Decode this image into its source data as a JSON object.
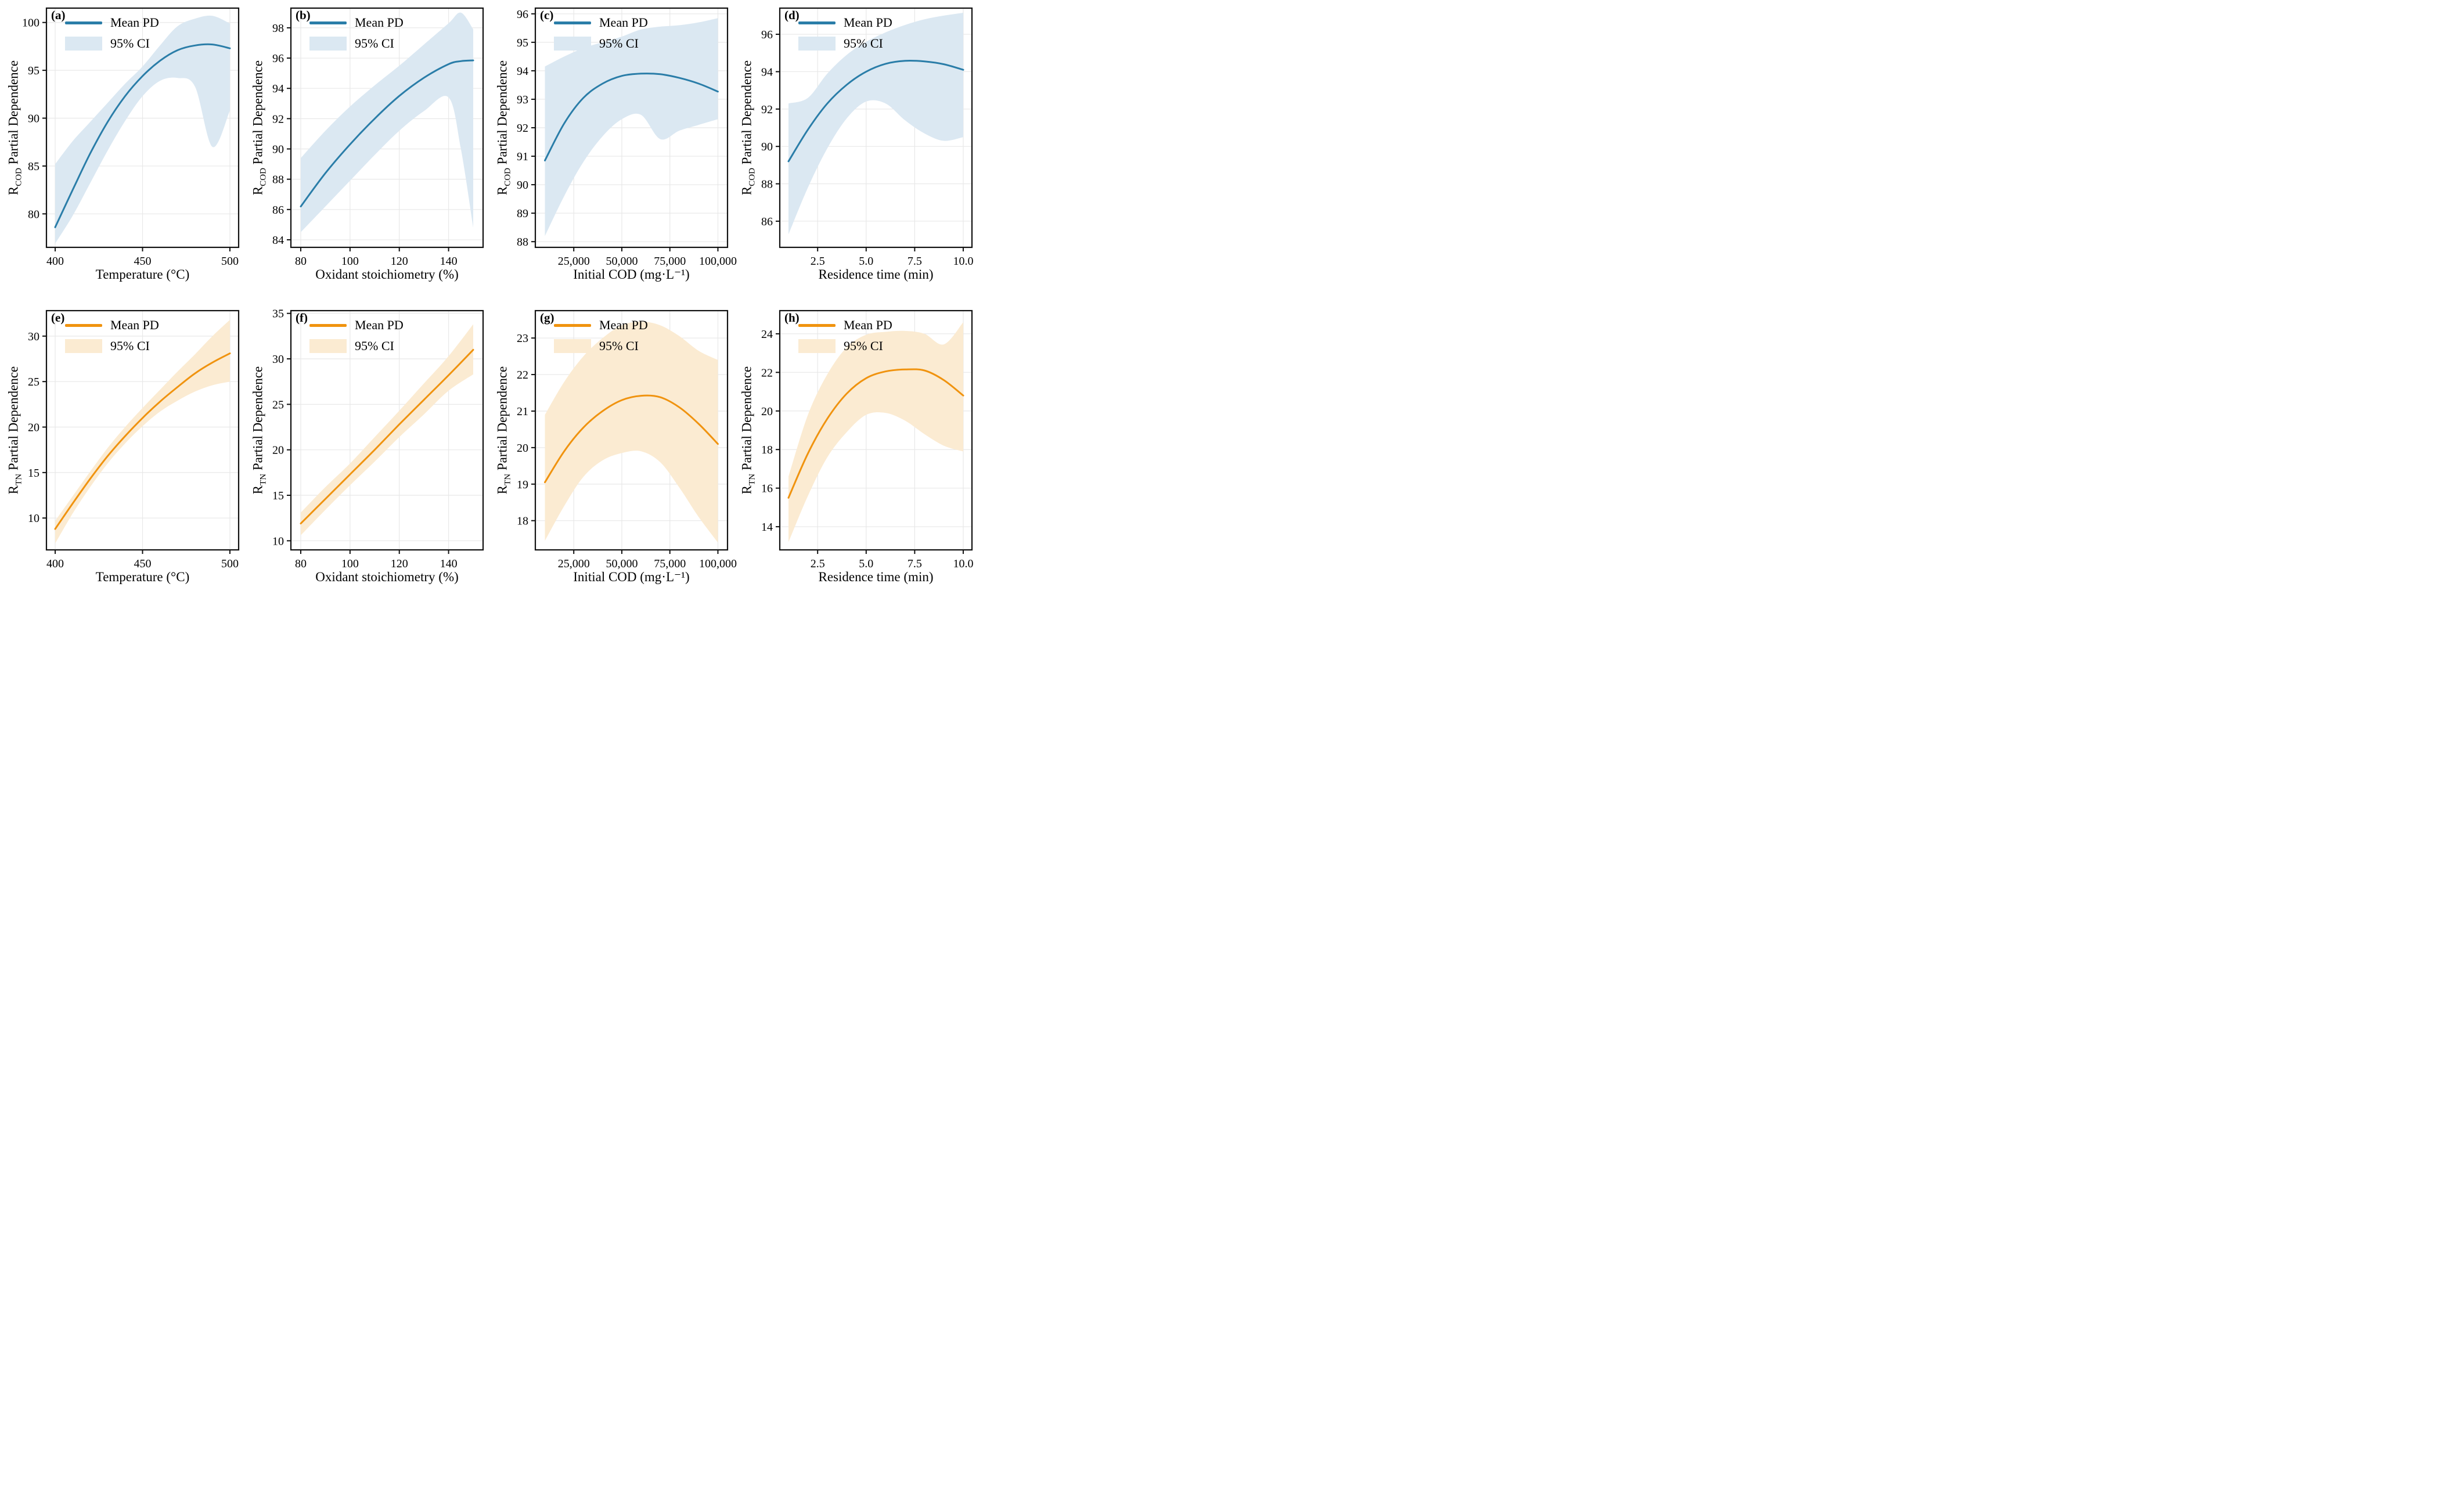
{
  "legend": {
    "mean_label": "Mean PD",
    "ci_label": "95% CI"
  },
  "colors": {
    "blue_line": "#2a7da8",
    "blue_fill": "#dbe8f2",
    "orange_line": "#f0930f",
    "orange_fill": "#fbebd2",
    "grid": "#e8e8e8",
    "spine": "#111111"
  },
  "chart_data": [
    {
      "type": "line",
      "panel_tag": "(a)",
      "series": "R_COD",
      "color_line": "#2a7da8",
      "color_fill": "#dbe8f2",
      "xlabel": "Temperature (°C)",
      "ylabel_prefix": "R",
      "ylabel_sub": "COD",
      "ylabel_rest": " Partial Dependence",
      "xlim": [
        395,
        505
      ],
      "ylim": [
        76.5,
        101.5
      ],
      "xticks": [
        {
          "v": 400,
          "label": "400"
        },
        {
          "v": 450,
          "label": "450"
        },
        {
          "v": 500,
          "label": "500"
        }
      ],
      "yticks": [
        {
          "v": 80,
          "label": "80"
        },
        {
          "v": 85,
          "label": "85"
        },
        {
          "v": 90,
          "label": "90"
        },
        {
          "v": 95,
          "label": "95"
        },
        {
          "v": 100,
          "label": "100"
        }
      ],
      "x": [
        400,
        410,
        420,
        430,
        440,
        450,
        460,
        470,
        480,
        490,
        500
      ],
      "mean": [
        78.6,
        82.5,
        86.3,
        89.6,
        92.3,
        94.4,
        96.0,
        97.1,
        97.6,
        97.7,
        97.3
      ],
      "ci_upper": [
        85.2,
        87.6,
        89.6,
        91.6,
        93.6,
        95.4,
        97.6,
        99.6,
        100.4,
        100.7,
        99.9
      ],
      "ci_lower": [
        76.9,
        79.8,
        83.2,
        86.6,
        89.7,
        92.3,
        93.9,
        94.2,
        93.3,
        87.0,
        90.8
      ]
    },
    {
      "type": "line",
      "panel_tag": "(b)",
      "series": "R_COD",
      "color_line": "#2a7da8",
      "color_fill": "#dbe8f2",
      "xlabel": "Oxidant stoichiometry (%)",
      "ylabel_prefix": "R",
      "ylabel_sub": "COD",
      "ylabel_rest": " Partial Dependence",
      "xlim": [
        76,
        154
      ],
      "ylim": [
        83.5,
        99.3
      ],
      "xticks": [
        {
          "v": 80,
          "label": "80"
        },
        {
          "v": 100,
          "label": "100"
        },
        {
          "v": 120,
          "label": "120"
        },
        {
          "v": 140,
          "label": "140"
        }
      ],
      "yticks": [
        {
          "v": 84,
          "label": "84"
        },
        {
          "v": 86,
          "label": "86"
        },
        {
          "v": 88,
          "label": "88"
        },
        {
          "v": 90,
          "label": "90"
        },
        {
          "v": 92,
          "label": "92"
        },
        {
          "v": 94,
          "label": "94"
        },
        {
          "v": 96,
          "label": "96"
        },
        {
          "v": 98,
          "label": "98"
        }
      ],
      "x": [
        80,
        90,
        100,
        110,
        120,
        130,
        140,
        145,
        150
      ],
      "mean": [
        86.2,
        88.4,
        90.3,
        92.0,
        93.5,
        94.7,
        95.6,
        95.8,
        95.85
      ],
      "ci_upper": [
        89.4,
        91.2,
        92.8,
        94.2,
        95.5,
        96.9,
        98.3,
        99.0,
        97.9
      ],
      "ci_lower": [
        84.5,
        86.2,
        87.9,
        89.6,
        91.2,
        92.5,
        93.4,
        90.0,
        84.8
      ]
    },
    {
      "type": "line",
      "panel_tag": "(c)",
      "series": "R_COD",
      "color_line": "#2a7da8",
      "color_fill": "#dbe8f2",
      "xlabel": "Initial COD (mg·L⁻¹)",
      "ylabel_prefix": "R",
      "ylabel_sub": "COD",
      "ylabel_rest": " Partial Dependence",
      "xlim": [
        5000,
        105000
      ],
      "ylim": [
        87.8,
        96.2
      ],
      "xticks": [
        {
          "v": 25000,
          "label": "25,000"
        },
        {
          "v": 50000,
          "label": "50,000"
        },
        {
          "v": 75000,
          "label": "75,000"
        },
        {
          "v": 100000,
          "label": "100,000"
        }
      ],
      "yticks": [
        {
          "v": 88,
          "label": "88"
        },
        {
          "v": 89,
          "label": "89"
        },
        {
          "v": 90,
          "label": "90"
        },
        {
          "v": 91,
          "label": "91"
        },
        {
          "v": 92,
          "label": "92"
        },
        {
          "v": 93,
          "label": "93"
        },
        {
          "v": 94,
          "label": "94"
        },
        {
          "v": 95,
          "label": "95"
        },
        {
          "v": 96,
          "label": "96"
        }
      ],
      "x": [
        10000,
        20000,
        30000,
        40000,
        50000,
        60000,
        70000,
        80000,
        90000,
        100000
      ],
      "mean": [
        90.85,
        92.15,
        93.05,
        93.55,
        93.82,
        93.9,
        93.88,
        93.75,
        93.55,
        93.27
      ],
      "ci_upper": [
        94.15,
        94.5,
        94.8,
        95.0,
        95.2,
        95.45,
        95.55,
        95.6,
        95.7,
        95.85
      ],
      "ci_lower": [
        88.2,
        89.6,
        90.8,
        91.7,
        92.3,
        92.45,
        91.6,
        91.9,
        92.1,
        92.3
      ]
    },
    {
      "type": "line",
      "panel_tag": "(d)",
      "series": "R_COD",
      "color_line": "#2a7da8",
      "color_fill": "#dbe8f2",
      "xlabel": "Residence time (min)",
      "ylabel_prefix": "R",
      "ylabel_sub": "COD",
      "ylabel_rest": " Partial Dependence",
      "xlim": [
        0.55,
        10.45
      ],
      "ylim": [
        84.6,
        97.4
      ],
      "xticks": [
        {
          "v": 2.5,
          "label": "2.5"
        },
        {
          "v": 5,
          "label": "5.0"
        },
        {
          "v": 7.5,
          "label": "7.5"
        },
        {
          "v": 10,
          "label": "10.0"
        }
      ],
      "yticks": [
        {
          "v": 86,
          "label": "86"
        },
        {
          "v": 88,
          "label": "88"
        },
        {
          "v": 90,
          "label": "90"
        },
        {
          "v": 92,
          "label": "92"
        },
        {
          "v": 94,
          "label": "94"
        },
        {
          "v": 96,
          "label": "96"
        }
      ],
      "x": [
        1,
        2,
        3,
        4,
        5,
        6,
        7,
        8,
        9,
        10
      ],
      "mean": [
        89.2,
        90.9,
        92.3,
        93.3,
        94.0,
        94.42,
        94.58,
        94.55,
        94.4,
        94.1
      ],
      "ci_upper": [
        92.3,
        92.6,
        93.9,
        94.9,
        95.6,
        96.1,
        96.5,
        96.8,
        97.0,
        97.15
      ],
      "ci_lower": [
        85.3,
        87.8,
        89.9,
        91.5,
        92.4,
        92.3,
        91.4,
        90.7,
        90.3,
        90.5
      ]
    },
    {
      "type": "line",
      "panel_tag": "(e)",
      "series": "R_TN",
      "color_line": "#f0930f",
      "color_fill": "#fbebd2",
      "xlabel": "Temperature (°C)",
      "ylabel_prefix": "R",
      "ylabel_sub": "TN",
      "ylabel_rest": " Partial Dependence",
      "xlim": [
        395,
        505
      ],
      "ylim": [
        6.5,
        32.8
      ],
      "xticks": [
        {
          "v": 400,
          "label": "400"
        },
        {
          "v": 450,
          "label": "450"
        },
        {
          "v": 500,
          "label": "500"
        }
      ],
      "yticks": [
        {
          "v": 10,
          "label": "10"
        },
        {
          "v": 15,
          "label": "15"
        },
        {
          "v": 20,
          "label": "20"
        },
        {
          "v": 25,
          "label": "25"
        },
        {
          "v": 30,
          "label": "30"
        }
      ],
      "x": [
        400,
        410,
        420,
        430,
        440,
        450,
        460,
        470,
        480,
        490,
        500
      ],
      "mean": [
        8.8,
        11.6,
        14.3,
        16.8,
        19.0,
        21.0,
        22.8,
        24.4,
        25.9,
        27.1,
        28.1
      ],
      "ci_upper": [
        9.7,
        12.4,
        15.1,
        17.7,
        20.0,
        22.1,
        24.1,
        26.1,
        28.0,
        30.0,
        31.8
      ],
      "ci_lower": [
        7.2,
        10.5,
        13.4,
        16.0,
        18.2,
        20.1,
        21.7,
        22.9,
        23.9,
        24.6,
        25.0
      ]
    },
    {
      "type": "line",
      "panel_tag": "(f)",
      "series": "R_TN",
      "color_line": "#f0930f",
      "color_fill": "#fbebd2",
      "xlabel": "Oxidant stoichiometry (%)",
      "ylabel_prefix": "R",
      "ylabel_sub": "TN",
      "ylabel_rest": " Partial Dependence",
      "xlim": [
        76,
        154
      ],
      "ylim": [
        9,
        35.3
      ],
      "xticks": [
        {
          "v": 80,
          "label": "80"
        },
        {
          "v": 100,
          "label": "100"
        },
        {
          "v": 120,
          "label": "120"
        },
        {
          "v": 140,
          "label": "140"
        }
      ],
      "yticks": [
        {
          "v": 10,
          "label": "10"
        },
        {
          "v": 15,
          "label": "15"
        },
        {
          "v": 20,
          "label": "20"
        },
        {
          "v": 25,
          "label": "25"
        },
        {
          "v": 30,
          "label": "30"
        },
        {
          "v": 35,
          "label": "35"
        }
      ],
      "x": [
        80,
        90,
        100,
        110,
        120,
        130,
        140,
        150
      ],
      "mean": [
        11.9,
        14.6,
        17.3,
        20.0,
        22.8,
        25.5,
        28.2,
        31.0
      ],
      "ci_upper": [
        13.1,
        15.9,
        18.5,
        21.4,
        24.3,
        27.3,
        30.3,
        33.8
      ],
      "ci_lower": [
        10.6,
        13.4,
        16.1,
        18.7,
        21.4,
        23.9,
        26.5,
        28.3
      ]
    },
    {
      "type": "line",
      "panel_tag": "(g)",
      "series": "R_TN",
      "color_line": "#f0930f",
      "color_fill": "#fbebd2",
      "xlabel": "Initial COD (mg·L⁻¹)",
      "ylabel_prefix": "R",
      "ylabel_sub": "TN",
      "ylabel_rest": " Partial Dependence",
      "xlim": [
        5000,
        105000
      ],
      "ylim": [
        17.2,
        23.75
      ],
      "xticks": [
        {
          "v": 25000,
          "label": "25,000"
        },
        {
          "v": 50000,
          "label": "50,000"
        },
        {
          "v": 75000,
          "label": "75,000"
        },
        {
          "v": 100000,
          "label": "100,000"
        }
      ],
      "yticks": [
        {
          "v": 18,
          "label": "18"
        },
        {
          "v": 19,
          "label": "19"
        },
        {
          "v": 20,
          "label": "20"
        },
        {
          "v": 21,
          "label": "21"
        },
        {
          "v": 22,
          "label": "22"
        },
        {
          "v": 23,
          "label": "23"
        }
      ],
      "x": [
        10000,
        20000,
        30000,
        40000,
        50000,
        60000,
        70000,
        80000,
        90000,
        100000
      ],
      "mean": [
        19.05,
        19.9,
        20.55,
        21.0,
        21.3,
        21.42,
        21.38,
        21.1,
        20.65,
        20.1
      ],
      "ci_upper": [
        20.9,
        21.8,
        22.5,
        23.0,
        23.35,
        23.45,
        23.35,
        23.05,
        22.65,
        22.4
      ],
      "ci_lower": [
        17.45,
        18.4,
        19.2,
        19.65,
        19.85,
        19.9,
        19.6,
        18.9,
        18.1,
        17.4
      ]
    },
    {
      "type": "line",
      "panel_tag": "(h)",
      "series": "R_TN",
      "color_line": "#f0930f",
      "color_fill": "#fbebd2",
      "xlabel": "Residence time (min)",
      "ylabel_prefix": "R",
      "ylabel_sub": "TN",
      "ylabel_rest": " Partial Dependence",
      "xlim": [
        0.55,
        10.45
      ],
      "ylim": [
        12.8,
        25.2
      ],
      "xticks": [
        {
          "v": 2.5,
          "label": "2.5"
        },
        {
          "v": 5,
          "label": "5.0"
        },
        {
          "v": 7.5,
          "label": "7.5"
        },
        {
          "v": 10,
          "label": "10.0"
        }
      ],
      "yticks": [
        {
          "v": 14,
          "label": "14"
        },
        {
          "v": 16,
          "label": "16"
        },
        {
          "v": 18,
          "label": "18"
        },
        {
          "v": 20,
          "label": "20"
        },
        {
          "v": 22,
          "label": "22"
        },
        {
          "v": 24,
          "label": "24"
        }
      ],
      "x": [
        1,
        2,
        3,
        4,
        5,
        6,
        7,
        8,
        9,
        10
      ],
      "mean": [
        15.5,
        17.8,
        19.6,
        20.9,
        21.7,
        22.05,
        22.15,
        22.1,
        21.6,
        20.8
      ],
      "ci_upper": [
        16.6,
        19.8,
        21.9,
        23.3,
        23.95,
        24.1,
        24.15,
        24.0,
        23.45,
        24.6
      ],
      "ci_lower": [
        13.2,
        15.6,
        17.6,
        18.9,
        19.8,
        19.9,
        19.5,
        18.8,
        18.2,
        17.9
      ]
    }
  ]
}
